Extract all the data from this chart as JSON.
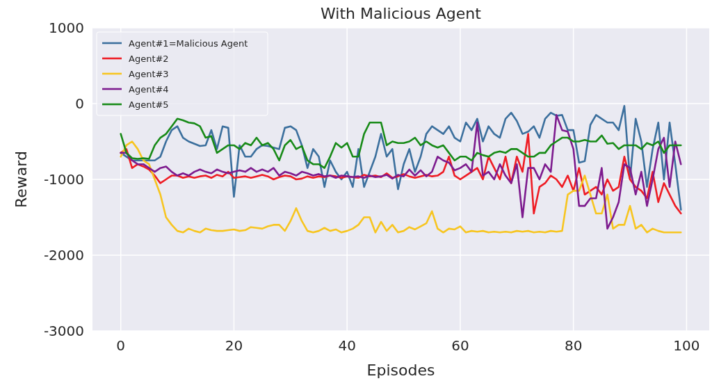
{
  "chart_data": {
    "type": "line",
    "title": "With Malicious Agent",
    "xlabel": "Episodes",
    "ylabel": "Reward",
    "x": [
      0,
      1,
      2,
      3,
      4,
      5,
      6,
      7,
      8,
      9,
      10,
      11,
      12,
      13,
      14,
      15,
      16,
      17,
      18,
      19,
      20,
      21,
      22,
      23,
      24,
      25,
      26,
      27,
      28,
      29,
      30,
      31,
      32,
      33,
      34,
      35,
      36,
      37,
      38,
      39,
      40,
      41,
      42,
      43,
      44,
      45,
      46,
      47,
      48,
      49,
      50,
      51,
      52,
      53,
      54,
      55,
      56,
      57,
      58,
      59,
      60,
      61,
      62,
      63,
      64,
      65,
      66,
      67,
      68,
      69,
      70,
      71,
      72,
      73,
      74,
      75,
      76,
      77,
      78,
      79,
      80,
      81,
      82,
      83,
      84,
      85,
      86,
      87,
      88,
      89,
      90,
      91,
      92,
      93,
      94,
      95,
      96,
      97,
      98,
      99
    ],
    "xlim": [
      -5,
      104
    ],
    "xticks": [
      0,
      20,
      40,
      60,
      80,
      100
    ],
    "ylim": [
      -3000,
      1000
    ],
    "yticks": [
      -3000,
      -2000,
      -1000,
      0,
      1000
    ],
    "grid": true,
    "legend": "top left",
    "series": [
      {
        "name": "Agent#1=Malicious Agent",
        "color": "#3b6f9d",
        "values": [
          -650,
          -700,
          -750,
          -750,
          -750,
          -750,
          -750,
          -700,
          -500,
          -350,
          -300,
          -450,
          -500,
          -530,
          -560,
          -550,
          -350,
          -600,
          -300,
          -320,
          -1230,
          -550,
          -700,
          -700,
          -600,
          -550,
          -560,
          -580,
          -600,
          -320,
          -300,
          -350,
          -550,
          -850,
          -600,
          -700,
          -1100,
          -750,
          -900,
          -1000,
          -900,
          -1100,
          -600,
          -1100,
          -900,
          -700,
          -400,
          -700,
          -600,
          -1130,
          -800,
          -600,
          -900,
          -700,
          -400,
          -300,
          -350,
          -400,
          -300,
          -450,
          -500,
          -250,
          -350,
          -200,
          -500,
          -300,
          -400,
          -450,
          -200,
          -120,
          -230,
          -400,
          -370,
          -300,
          -450,
          -200,
          -120,
          -160,
          -150,
          -350,
          -350,
          -780,
          -760,
          -280,
          -150,
          -200,
          -250,
          -250,
          -350,
          -30,
          -1000,
          -200,
          -500,
          -1100,
          -600,
          -250,
          -1000,
          -250,
          -800,
          -1400
        ]
      },
      {
        "name": "Agent#2",
        "color": "#ee1c24",
        "values": [
          -650,
          -600,
          -850,
          -800,
          -830,
          -870,
          -950,
          -1050,
          -1000,
          -950,
          -950,
          -980,
          -960,
          -980,
          -960,
          -950,
          -980,
          -940,
          -960,
          -900,
          -980,
          -970,
          -960,
          -980,
          -960,
          -940,
          -960,
          -1000,
          -970,
          -950,
          -960,
          -1000,
          -990,
          -960,
          -980,
          -960,
          -970,
          -950,
          -960,
          -980,
          -960,
          -970,
          -980,
          -940,
          -960,
          -950,
          -970,
          -920,
          -980,
          -960,
          -930,
          -960,
          -980,
          -960,
          -940,
          -960,
          -950,
          -900,
          -700,
          -950,
          -1000,
          -950,
          -900,
          -850,
          -1000,
          -700,
          -850,
          -1000,
          -700,
          -1050,
          -700,
          -900,
          -400,
          -1450,
          -1100,
          -1050,
          -950,
          -1000,
          -1100,
          -950,
          -1150,
          -850,
          -1200,
          -1150,
          -1100,
          -1200,
          -1000,
          -1150,
          -1100,
          -700,
          -1000,
          -1100,
          -1150,
          -1250,
          -900,
          -1300,
          -1050,
          -1200,
          -1350,
          -1450
        ]
      },
      {
        "name": "Agent#3",
        "color": "#f7c520",
        "values": [
          -700,
          -550,
          -500,
          -600,
          -750,
          -800,
          -1000,
          -1200,
          -1500,
          -1600,
          -1680,
          -1700,
          -1650,
          -1680,
          -1700,
          -1650,
          -1670,
          -1680,
          -1680,
          -1670,
          -1660,
          -1680,
          -1670,
          -1630,
          -1640,
          -1650,
          -1620,
          -1600,
          -1600,
          -1680,
          -1550,
          -1380,
          -1550,
          -1680,
          -1700,
          -1680,
          -1640,
          -1680,
          -1660,
          -1700,
          -1680,
          -1650,
          -1600,
          -1500,
          -1500,
          -1700,
          -1560,
          -1680,
          -1600,
          -1700,
          -1680,
          -1630,
          -1660,
          -1620,
          -1580,
          -1420,
          -1650,
          -1700,
          -1650,
          -1660,
          -1620,
          -1700,
          -1680,
          -1690,
          -1680,
          -1700,
          -1690,
          -1700,
          -1690,
          -1700,
          -1680,
          -1690,
          -1680,
          -1700,
          -1690,
          -1700,
          -1680,
          -1690,
          -1680,
          -1200,
          -1150,
          -1150,
          -950,
          -1200,
          -1450,
          -1450,
          -1200,
          -1650,
          -1600,
          -1600,
          -1350,
          -1650,
          -1600,
          -1700,
          -1650,
          -1680,
          -1700,
          -1700,
          -1700,
          -1700
        ]
      },
      {
        "name": "Agent#4",
        "color": "#7d1b8e",
        "values": [
          -650,
          -650,
          -750,
          -800,
          -800,
          -850,
          -900,
          -850,
          -830,
          -900,
          -950,
          -920,
          -950,
          -900,
          -870,
          -900,
          -920,
          -870,
          -900,
          -920,
          -900,
          -880,
          -900,
          -850,
          -900,
          -870,
          -900,
          -850,
          -950,
          -900,
          -920,
          -950,
          -900,
          -920,
          -950,
          -930,
          -960,
          -950,
          -980,
          -950,
          -960,
          -970,
          -960,
          -980,
          -950,
          -970,
          -960,
          -940,
          -990,
          -940,
          -960,
          -870,
          -950,
          -880,
          -960,
          -900,
          -700,
          -750,
          -780,
          -880,
          -850,
          -800,
          -900,
          -250,
          -950,
          -900,
          -1000,
          -800,
          -950,
          -1050,
          -800,
          -1500,
          -850,
          -850,
          -1000,
          -800,
          -900,
          -150,
          -350,
          -370,
          -600,
          -1350,
          -1350,
          -1250,
          -1250,
          -850,
          -1650,
          -1500,
          -1300,
          -800,
          -850,
          -1200,
          -900,
          -1350,
          -1000,
          -600,
          -450,
          -1100,
          -500,
          -800
        ]
      },
      {
        "name": "Agent#5",
        "color": "#178a17",
        "values": [
          -400,
          -650,
          -720,
          -730,
          -720,
          -730,
          -550,
          -450,
          -400,
          -300,
          -200,
          -220,
          -250,
          -260,
          -300,
          -450,
          -430,
          -650,
          -600,
          -550,
          -550,
          -600,
          -520,
          -550,
          -450,
          -550,
          -520,
          -600,
          -750,
          -550,
          -480,
          -600,
          -560,
          -750,
          -800,
          -800,
          -850,
          -700,
          -520,
          -580,
          -520,
          -700,
          -700,
          -400,
          -250,
          -250,
          -250,
          -550,
          -500,
          -520,
          -520,
          -500,
          -450,
          -550,
          -500,
          -550,
          -580,
          -550,
          -650,
          -750,
          -700,
          -700,
          -750,
          -650,
          -680,
          -700,
          -650,
          -630,
          -650,
          -600,
          -600,
          -650,
          -700,
          -700,
          -650,
          -650,
          -550,
          -500,
          -450,
          -450,
          -500,
          -500,
          -480,
          -500,
          -500,
          -420,
          -530,
          -520,
          -600,
          -550,
          -550,
          -550,
          -600,
          -520,
          -550,
          -500,
          -650,
          -550,
          -550,
          -550
        ]
      }
    ]
  }
}
